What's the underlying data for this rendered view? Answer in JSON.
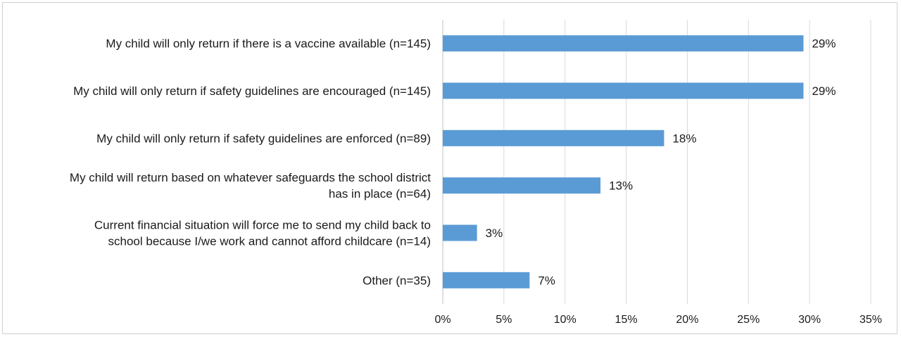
{
  "chart_data": {
    "type": "bar",
    "orientation": "horizontal",
    "categories": [
      [
        "My child will only return if there is a vaccine available (n=145)"
      ],
      [
        "My child will only return if safety guidelines are encouraged (n=145)"
      ],
      [
        "My child will only return if safety guidelines are enforced (n=89)"
      ],
      [
        "My child will return based on whatever safeguards the school district",
        "has in place (n=64)"
      ],
      [
        "Current financial situation will force me to send my child back to",
        "school because I/we work and cannot afford childcare (n=14)"
      ],
      [
        "Other (n=35)"
      ]
    ],
    "values": [
      29.5,
      29.5,
      18.1,
      12.9,
      2.8,
      7.1
    ],
    "data_labels": [
      "29%",
      "29%",
      "18%",
      "13%",
      "3%",
      "7%"
    ],
    "xlim": [
      0,
      35
    ],
    "xticks": [
      0,
      5,
      10,
      15,
      20,
      25,
      30,
      35
    ],
    "xtick_labels": [
      "0%",
      "5%",
      "10%",
      "15%",
      "20%",
      "25%",
      "30%",
      "35%"
    ],
    "grid": "vertical",
    "bar_color": "#5b9bd5",
    "grid_color": "#d9d9d9"
  }
}
